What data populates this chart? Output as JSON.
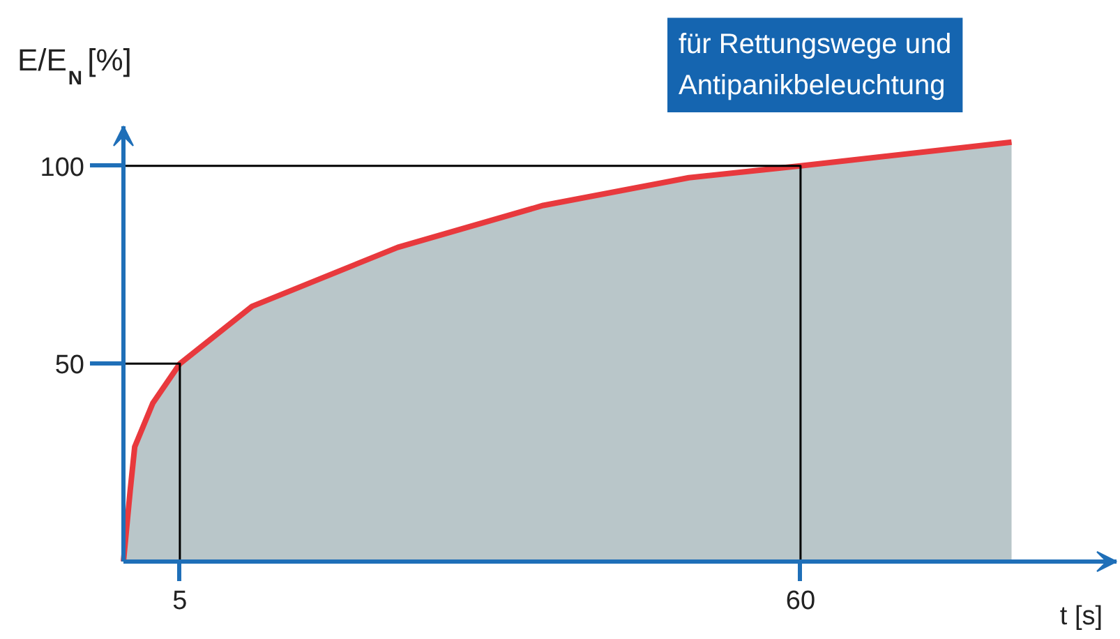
{
  "chart_data": {
    "type": "area",
    "ylabel": "E/E$_{N}$ [%]",
    "xlabel": "t [s]",
    "annotations": [
      "für Rettungswege und\nAntipanikbeleuchtung"
    ],
    "x": [
      0,
      0.6,
      1,
      2.6,
      5,
      11.4,
      24.3,
      37.2,
      50.1,
      60,
      78.7
    ],
    "series": [
      {
        "color": "#e8393d",
        "values": [
          0,
          18,
          29,
          40,
          50,
          64.5,
          79.4,
          90,
          97,
          100,
          106
        ]
      },
      {
        "type": "line",
        "color": "#000000",
        "x": [
          0,
          5,
          5
        ],
        "values": [
          50,
          50,
          0
        ]
      },
      {
        "type": "line",
        "color": "#000000",
        "x": [
          0,
          60,
          60
        ],
        "values": [
          100,
          100,
          0
        ]
      }
    ],
    "xlim": [
      0,
      88
    ],
    "ylim": [
      0,
      110
    ],
    "xticks": [
      5,
      60
    ],
    "yticks": [
      50,
      100
    ],
    "grid": false
  }
}
